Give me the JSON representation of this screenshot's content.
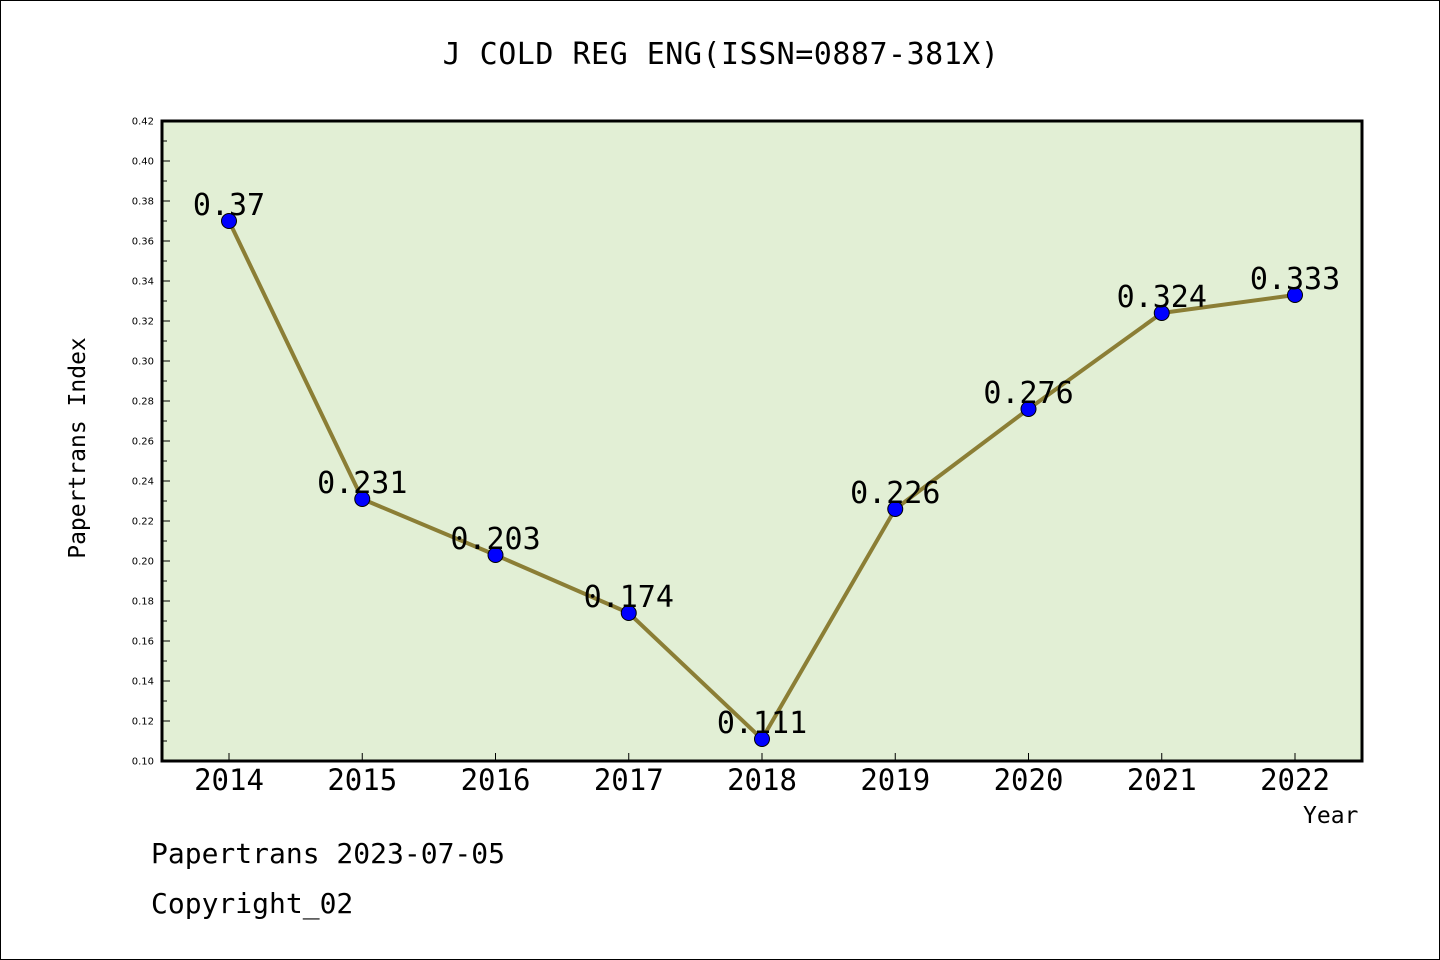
{
  "chart_data": {
    "type": "line",
    "title": "J COLD REG ENG(ISSN=0887-381X)",
    "xlabel": "Year",
    "ylabel": "Papertrans Index",
    "categories": [
      "2014",
      "2015",
      "2016",
      "2017",
      "2018",
      "2019",
      "2020",
      "2021",
      "2022"
    ],
    "series": [
      {
        "values": [
          0.37,
          0.231,
          0.203,
          0.174,
          0.111,
          0.226,
          0.276,
          0.324,
          0.333
        ],
        "labels": [
          "0.37",
          "0.231",
          "0.203",
          "0.174",
          "0.111",
          "0.226",
          "0.276",
          "0.324",
          "0.333"
        ]
      }
    ],
    "ylim": [
      0.1,
      0.42
    ],
    "yticks": [
      "0.10",
      "0.12",
      "0.14",
      "0.16",
      "0.18",
      "0.20",
      "0.22",
      "0.24",
      "0.26",
      "0.28",
      "0.30",
      "0.32",
      "0.34",
      "0.36",
      "0.38",
      "0.40",
      "0.42"
    ],
    "grid": false,
    "legend": "none",
    "colors": {
      "plot_background": "#e2efd5",
      "line": "#8b7e35",
      "marker": "#0000ff"
    }
  },
  "footer": {
    "date_line": "Papertrans 2023-07-05",
    "copyright": "Copyright_02"
  }
}
